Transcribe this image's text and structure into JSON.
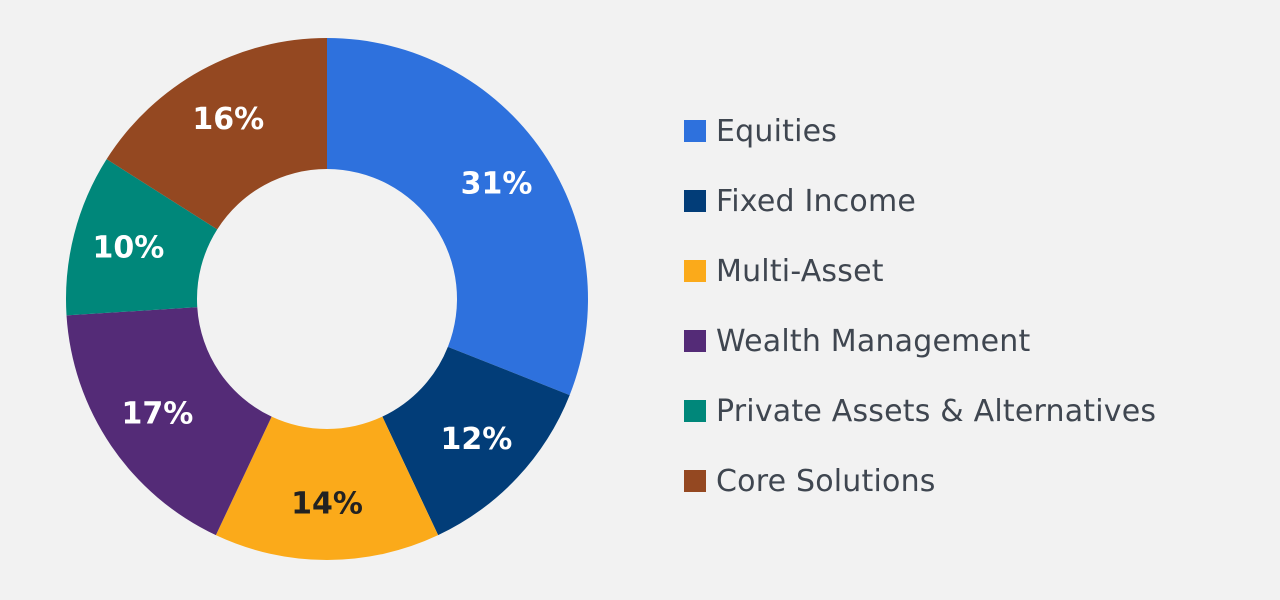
{
  "chart_data": {
    "type": "pie",
    "variant": "donut",
    "title": "",
    "categories": [
      "Equities",
      "Fixed Income",
      "Multi-Asset",
      "Wealth Management",
      "Private Assets & Alternatives",
      "Core Solutions"
    ],
    "values": [
      31,
      12,
      14,
      17,
      10,
      16
    ],
    "labels": [
      "31%",
      "12%",
      "14%",
      "17%",
      "10%",
      "16%"
    ],
    "colors": [
      "#2e71dd",
      "#023d78",
      "#fbaa1a",
      "#542b77",
      "#00877a",
      "#944821"
    ],
    "label_colors": [
      "#ffffff",
      "#ffffff",
      "#222222",
      "#ffffff",
      "#ffffff",
      "#ffffff"
    ],
    "start_angle_deg": 0,
    "direction": "clockwise",
    "legend_position": "right"
  },
  "legend": {
    "items": [
      {
        "label": "Equities",
        "color": "#2e71dd"
      },
      {
        "label": "Fixed Income",
        "color": "#023d78"
      },
      {
        "label": "Multi-Asset",
        "color": "#fbaa1a"
      },
      {
        "label": "Wealth Management",
        "color": "#542b77"
      },
      {
        "label": "Private Assets & Alternatives",
        "color": "#00877a"
      },
      {
        "label": "Core Solutions",
        "color": "#944821"
      }
    ]
  }
}
